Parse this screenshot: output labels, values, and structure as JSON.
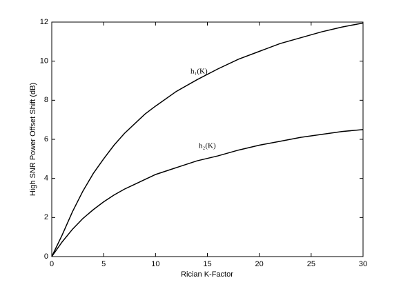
{
  "chart_data": {
    "type": "line",
    "x_label": "Rician K-Factor",
    "y_label": "High SNR Power Offset Shift (dB)",
    "x": [
      0,
      1,
      2,
      3,
      4,
      5,
      6,
      7,
      8,
      9,
      10,
      12,
      14,
      16,
      18,
      20,
      22,
      24,
      26,
      28,
      30
    ],
    "series": [
      {
        "name": "h₁(K)",
        "color": "#000000",
        "values": [
          0,
          1.1,
          2.3,
          3.35,
          4.25,
          5.0,
          5.7,
          6.3,
          6.8,
          7.3,
          7.7,
          8.45,
          9.05,
          9.6,
          10.1,
          10.5,
          10.9,
          11.2,
          11.5,
          11.75,
          11.95
        ]
      },
      {
        "name": "h₂(K)",
        "color": "#000000",
        "values": [
          0,
          0.75,
          1.4,
          1.95,
          2.4,
          2.8,
          3.15,
          3.45,
          3.7,
          3.95,
          4.2,
          4.55,
          4.9,
          5.15,
          5.45,
          5.7,
          5.9,
          6.1,
          6.25,
          6.4,
          6.5
        ]
      }
    ],
    "xlim": [
      0,
      30
    ],
    "xticks": [
      0,
      5,
      10,
      15,
      20,
      25,
      30
    ],
    "ylim": [
      0,
      12
    ],
    "yticks": [
      0,
      2,
      4,
      6,
      8,
      10,
      12
    ],
    "grid": false
  }
}
